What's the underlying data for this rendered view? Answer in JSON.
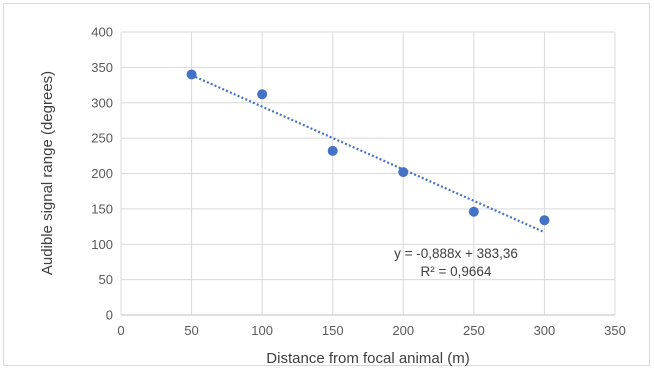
{
  "chart_data": {
    "type": "scatter",
    "title": "",
    "xlabel": "Distance from focal animal (m)",
    "ylabel": "Audible signal range (degrees)",
    "xlim": [
      0,
      350
    ],
    "ylim": [
      0,
      400
    ],
    "x_ticks": [
      0,
      50,
      100,
      150,
      200,
      250,
      300,
      350
    ],
    "y_ticks": [
      0,
      50,
      100,
      150,
      200,
      250,
      300,
      350,
      400
    ],
    "grid": true,
    "legend": "none",
    "series": [
      {
        "x": [
          50,
          100,
          150,
          200,
          250,
          300
        ],
        "y": [
          340,
          312,
          232,
          202,
          146,
          134
        ],
        "color": "#4472c4"
      }
    ],
    "trendline": {
      "type": "linear",
      "slope": -0.888,
      "intercept": 383.36,
      "x_range": [
        50,
        300
      ],
      "color": "#4472c4",
      "style": "dotted"
    },
    "annotations": {
      "equation": "y = -0,888x + 383,36",
      "r_squared": "R² = 0,9664"
    }
  }
}
